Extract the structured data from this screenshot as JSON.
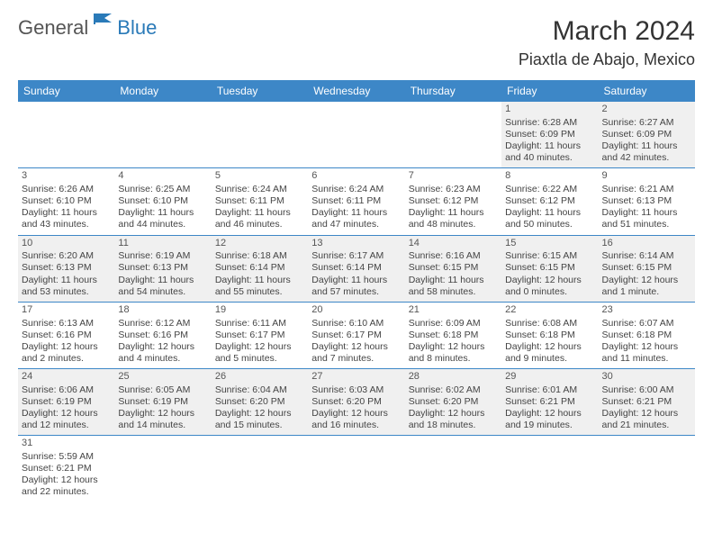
{
  "logo": {
    "text1": "General",
    "text2": "Blue"
  },
  "title": "March 2024",
  "location": "Piaxtla de Abajo, Mexico",
  "colors": {
    "header_bg": "#3d87c7",
    "header_text": "#ffffff",
    "row_alt_bg": "#f0f0f0",
    "border": "#3d87c7",
    "logo_gray": "#555555",
    "logo_blue": "#2a7ab8"
  },
  "day_headers": [
    "Sunday",
    "Monday",
    "Tuesday",
    "Wednesday",
    "Thursday",
    "Friday",
    "Saturday"
  ],
  "weeks": [
    [
      null,
      null,
      null,
      null,
      null,
      {
        "n": "1",
        "sunrise": "Sunrise: 6:28 AM",
        "sunset": "Sunset: 6:09 PM",
        "daylight": "Daylight: 11 hours and 40 minutes."
      },
      {
        "n": "2",
        "sunrise": "Sunrise: 6:27 AM",
        "sunset": "Sunset: 6:09 PM",
        "daylight": "Daylight: 11 hours and 42 minutes."
      }
    ],
    [
      {
        "n": "3",
        "sunrise": "Sunrise: 6:26 AM",
        "sunset": "Sunset: 6:10 PM",
        "daylight": "Daylight: 11 hours and 43 minutes."
      },
      {
        "n": "4",
        "sunrise": "Sunrise: 6:25 AM",
        "sunset": "Sunset: 6:10 PM",
        "daylight": "Daylight: 11 hours and 44 minutes."
      },
      {
        "n": "5",
        "sunrise": "Sunrise: 6:24 AM",
        "sunset": "Sunset: 6:11 PM",
        "daylight": "Daylight: 11 hours and 46 minutes."
      },
      {
        "n": "6",
        "sunrise": "Sunrise: 6:24 AM",
        "sunset": "Sunset: 6:11 PM",
        "daylight": "Daylight: 11 hours and 47 minutes."
      },
      {
        "n": "7",
        "sunrise": "Sunrise: 6:23 AM",
        "sunset": "Sunset: 6:12 PM",
        "daylight": "Daylight: 11 hours and 48 minutes."
      },
      {
        "n": "8",
        "sunrise": "Sunrise: 6:22 AM",
        "sunset": "Sunset: 6:12 PM",
        "daylight": "Daylight: 11 hours and 50 minutes."
      },
      {
        "n": "9",
        "sunrise": "Sunrise: 6:21 AM",
        "sunset": "Sunset: 6:13 PM",
        "daylight": "Daylight: 11 hours and 51 minutes."
      }
    ],
    [
      {
        "n": "10",
        "sunrise": "Sunrise: 6:20 AM",
        "sunset": "Sunset: 6:13 PM",
        "daylight": "Daylight: 11 hours and 53 minutes."
      },
      {
        "n": "11",
        "sunrise": "Sunrise: 6:19 AM",
        "sunset": "Sunset: 6:13 PM",
        "daylight": "Daylight: 11 hours and 54 minutes."
      },
      {
        "n": "12",
        "sunrise": "Sunrise: 6:18 AM",
        "sunset": "Sunset: 6:14 PM",
        "daylight": "Daylight: 11 hours and 55 minutes."
      },
      {
        "n": "13",
        "sunrise": "Sunrise: 6:17 AM",
        "sunset": "Sunset: 6:14 PM",
        "daylight": "Daylight: 11 hours and 57 minutes."
      },
      {
        "n": "14",
        "sunrise": "Sunrise: 6:16 AM",
        "sunset": "Sunset: 6:15 PM",
        "daylight": "Daylight: 11 hours and 58 minutes."
      },
      {
        "n": "15",
        "sunrise": "Sunrise: 6:15 AM",
        "sunset": "Sunset: 6:15 PM",
        "daylight": "Daylight: 12 hours and 0 minutes."
      },
      {
        "n": "16",
        "sunrise": "Sunrise: 6:14 AM",
        "sunset": "Sunset: 6:15 PM",
        "daylight": "Daylight: 12 hours and 1 minute."
      }
    ],
    [
      {
        "n": "17",
        "sunrise": "Sunrise: 6:13 AM",
        "sunset": "Sunset: 6:16 PM",
        "daylight": "Daylight: 12 hours and 2 minutes."
      },
      {
        "n": "18",
        "sunrise": "Sunrise: 6:12 AM",
        "sunset": "Sunset: 6:16 PM",
        "daylight": "Daylight: 12 hours and 4 minutes."
      },
      {
        "n": "19",
        "sunrise": "Sunrise: 6:11 AM",
        "sunset": "Sunset: 6:17 PM",
        "daylight": "Daylight: 12 hours and 5 minutes."
      },
      {
        "n": "20",
        "sunrise": "Sunrise: 6:10 AM",
        "sunset": "Sunset: 6:17 PM",
        "daylight": "Daylight: 12 hours and 7 minutes."
      },
      {
        "n": "21",
        "sunrise": "Sunrise: 6:09 AM",
        "sunset": "Sunset: 6:18 PM",
        "daylight": "Daylight: 12 hours and 8 minutes."
      },
      {
        "n": "22",
        "sunrise": "Sunrise: 6:08 AM",
        "sunset": "Sunset: 6:18 PM",
        "daylight": "Daylight: 12 hours and 9 minutes."
      },
      {
        "n": "23",
        "sunrise": "Sunrise: 6:07 AM",
        "sunset": "Sunset: 6:18 PM",
        "daylight": "Daylight: 12 hours and 11 minutes."
      }
    ],
    [
      {
        "n": "24",
        "sunrise": "Sunrise: 6:06 AM",
        "sunset": "Sunset: 6:19 PM",
        "daylight": "Daylight: 12 hours and 12 minutes."
      },
      {
        "n": "25",
        "sunrise": "Sunrise: 6:05 AM",
        "sunset": "Sunset: 6:19 PM",
        "daylight": "Daylight: 12 hours and 14 minutes."
      },
      {
        "n": "26",
        "sunrise": "Sunrise: 6:04 AM",
        "sunset": "Sunset: 6:20 PM",
        "daylight": "Daylight: 12 hours and 15 minutes."
      },
      {
        "n": "27",
        "sunrise": "Sunrise: 6:03 AM",
        "sunset": "Sunset: 6:20 PM",
        "daylight": "Daylight: 12 hours and 16 minutes."
      },
      {
        "n": "28",
        "sunrise": "Sunrise: 6:02 AM",
        "sunset": "Sunset: 6:20 PM",
        "daylight": "Daylight: 12 hours and 18 minutes."
      },
      {
        "n": "29",
        "sunrise": "Sunrise: 6:01 AM",
        "sunset": "Sunset: 6:21 PM",
        "daylight": "Daylight: 12 hours and 19 minutes."
      },
      {
        "n": "30",
        "sunrise": "Sunrise: 6:00 AM",
        "sunset": "Sunset: 6:21 PM",
        "daylight": "Daylight: 12 hours and 21 minutes."
      }
    ],
    [
      {
        "n": "31",
        "sunrise": "Sunrise: 5:59 AM",
        "sunset": "Sunset: 6:21 PM",
        "daylight": "Daylight: 12 hours and 22 minutes."
      },
      null,
      null,
      null,
      null,
      null,
      null
    ]
  ]
}
